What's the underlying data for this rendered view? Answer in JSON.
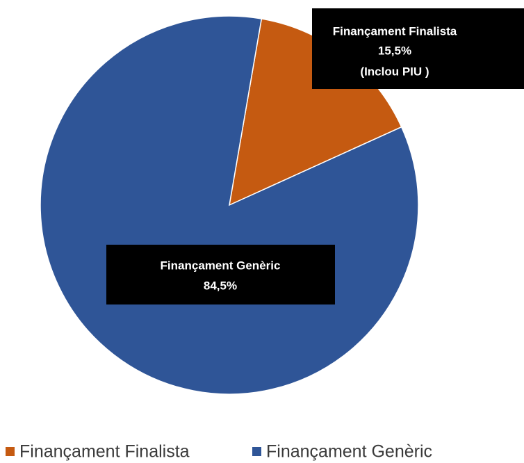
{
  "chart_data": {
    "type": "pie",
    "categories": [
      "Finançament Finalista",
      "Finançament Genèric"
    ],
    "values": [
      15.5,
      84.5
    ],
    "value_labels": [
      "15,5%",
      "84,5%"
    ],
    "annotation": "(Inclou PIU )",
    "colors": [
      "#c55a11",
      "#2f5597"
    ],
    "legend": "bottom"
  }
}
